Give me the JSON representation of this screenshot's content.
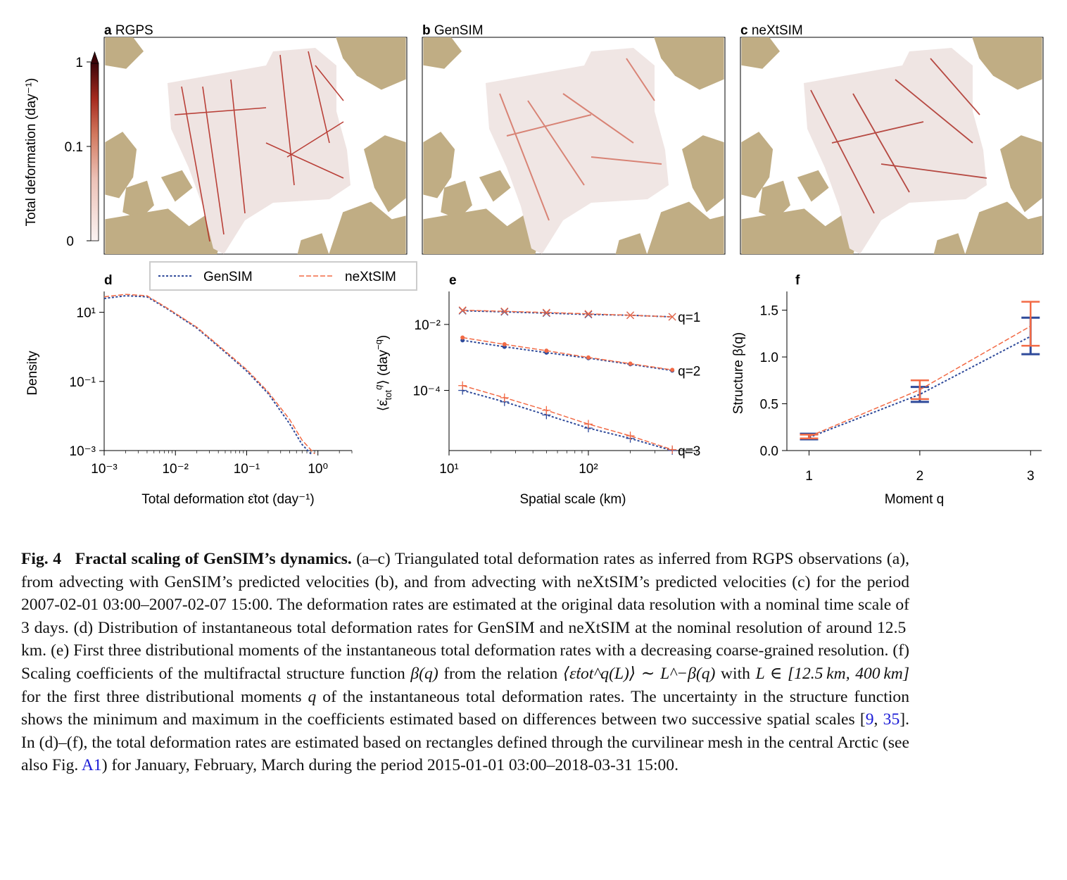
{
  "panels": {
    "a": {
      "letter": "a",
      "title": "RGPS"
    },
    "b": {
      "letter": "b",
      "title": "GenSIM"
    },
    "c": {
      "letter": "c",
      "title": "neXtSIM"
    }
  },
  "colorbar": {
    "label": "Total deformation (day⁻¹)",
    "ticks": [
      "1",
      "0.1",
      "0"
    ]
  },
  "legend": {
    "gensim": "GenSIM",
    "nextsim": "neXtSIM"
  },
  "colors": {
    "gensim": "#2f4a9a",
    "nextsim": "#f26a45",
    "land": "#c0ad84",
    "deformation_high": "#7a0a0a",
    "deformation_low": "#f2e8e6"
  },
  "chart_data": [
    {
      "panel": "d",
      "type": "line",
      "xlabel": "Total deformation ε̇tot (day⁻¹)",
      "ylabel": "Density",
      "x_scale": "log",
      "y_scale": "log",
      "xlim": [
        0.001,
        3
      ],
      "ylim": [
        0.001,
        40
      ],
      "xticks": [
        "10⁻³",
        "10⁻²",
        "10⁻¹",
        "10⁰"
      ],
      "yticks": [
        "10¹",
        "10⁻¹",
        "10⁻³"
      ],
      "series": [
        {
          "name": "GenSIM",
          "x": [
            0.001,
            0.002,
            0.004,
            0.008,
            0.02,
            0.05,
            0.1,
            0.2,
            0.4,
            0.6,
            0.8
          ],
          "y": [
            25,
            30,
            28,
            12,
            3.5,
            0.7,
            0.2,
            0.045,
            0.006,
            0.0015,
            0.0008
          ]
        },
        {
          "name": "neXtSIM",
          "x": [
            0.001,
            0.002,
            0.004,
            0.008,
            0.02,
            0.05,
            0.1,
            0.2,
            0.4,
            0.6,
            0.9
          ],
          "y": [
            28,
            33,
            30,
            12.5,
            3.7,
            0.75,
            0.22,
            0.05,
            0.008,
            0.002,
            0.0008
          ]
        }
      ]
    },
    {
      "panel": "e",
      "type": "line",
      "xlabel": "Spatial scale (km)",
      "ylabel": "⟨ε̇tot^q⟩ (day⁻ᵠ)",
      "x_scale": "log",
      "y_scale": "log",
      "xlim": [
        10,
        600
      ],
      "ylim": [
        1.5e-06,
        0.1
      ],
      "xticks": [
        "10¹",
        "10²"
      ],
      "yticks": [
        "10⁻²",
        "10⁻⁴"
      ],
      "x": [
        12.5,
        25,
        50,
        100,
        200,
        400
      ],
      "series": [
        {
          "name": "GenSIM",
          "q": "q=1",
          "values": [
            0.026,
            0.024,
            0.022,
            0.02,
            0.019,
            0.017
          ]
        },
        {
          "name": "neXtSIM",
          "q": "q=1",
          "values": [
            0.027,
            0.025,
            0.023,
            0.021,
            0.019,
            0.017
          ]
        },
        {
          "name": "GenSIM",
          "q": "q=2",
          "values": [
            0.0033,
            0.0021,
            0.0014,
            0.00095,
            0.00062,
            0.0004
          ]
        },
        {
          "name": "neXtSIM",
          "q": "q=2",
          "values": [
            0.004,
            0.0025,
            0.0016,
            0.001,
            0.00065,
            0.00042
          ]
        },
        {
          "name": "GenSIM",
          "q": "q=3",
          "values": [
            0.0001,
            4.5e-05,
            1.8e-05,
            7.2e-06,
            3.5e-06,
            1.5e-06
          ]
        },
        {
          "name": "neXtSIM",
          "q": "q=3",
          "values": [
            0.00014,
            6e-05,
            2.5e-05,
            9.5e-06,
            4.2e-06,
            1.6e-06
          ]
        }
      ],
      "annotations": [
        "q=1",
        "q=2",
        "q=3"
      ]
    },
    {
      "panel": "f",
      "type": "line",
      "xlabel": "Moment q",
      "ylabel": "Structure β(q)",
      "xlim": [
        0.8,
        3.1
      ],
      "ylim": [
        0,
        1.7
      ],
      "xticks": [
        "1",
        "2",
        "3"
      ],
      "yticks": [
        "0.0",
        "0.5",
        "1.0",
        "1.5"
      ],
      "x": [
        1,
        2,
        3
      ],
      "series": [
        {
          "name": "GenSIM",
          "values": [
            0.14,
            0.6,
            1.22
          ],
          "err_min": [
            0.12,
            0.52,
            1.03
          ],
          "err_max": [
            0.18,
            0.68,
            1.42
          ]
        },
        {
          "name": "neXtSIM",
          "values": [
            0.15,
            0.65,
            1.33
          ],
          "err_min": [
            0.13,
            0.55,
            1.12
          ],
          "err_max": [
            0.17,
            0.75,
            1.59
          ]
        }
      ]
    }
  ],
  "caption": {
    "label": "Fig. 4",
    "title": "Fractal scaling of GenSIM’s dynamics.",
    "p1": "(a–c) Triangulated total deformation rates as inferred from RGPS observations (a), from advecting with GenSIM’s predicted velocities (b), and from advecting with neXtSIM’s predicted velocities (c) for the period 2007-02-01 03:00–2007-02-07 15:00. The deformation rates are estimated at the original data resolution with a nominal time scale of 3 days. (d) Distribution of instantaneous total deformation rates for GenSIM and neXtSIM at the nominal resolution of around 12.5 km. (e) First three distributional moments of the instantaneous total deformation rates with a decreasing coarse-grained resolution. (f) Scaling coefficients of the multifractal structure function",
    "beta": "β(q)",
    "p2": "from the relation",
    "relation": "⟨ε̇tot^q(L)⟩ ∼ L^−β(q)",
    "p3": "with",
    "range": "L ∈ [12.5 km, 400 km]",
    "p4": "for the first three distributional moments",
    "q": "q",
    "p5": "of the instantaneous total deformation rates. The uncertainty in the structure function shows the minimum and maximum in the coefficients estimated based on differences between two successive spatial scales [",
    "ref1": "9",
    "ref_sep": ", ",
    "ref2": "35",
    "p6": "]. In (d)–(f), the total deformation rates are estimated based on rectangles defined through the curvilinear mesh in the central Arctic (see also Fig.",
    "ref3": "A1",
    "p7": ") for January, February, March during the period 2015-01-01 03:00–2018-03-31 15:00."
  }
}
